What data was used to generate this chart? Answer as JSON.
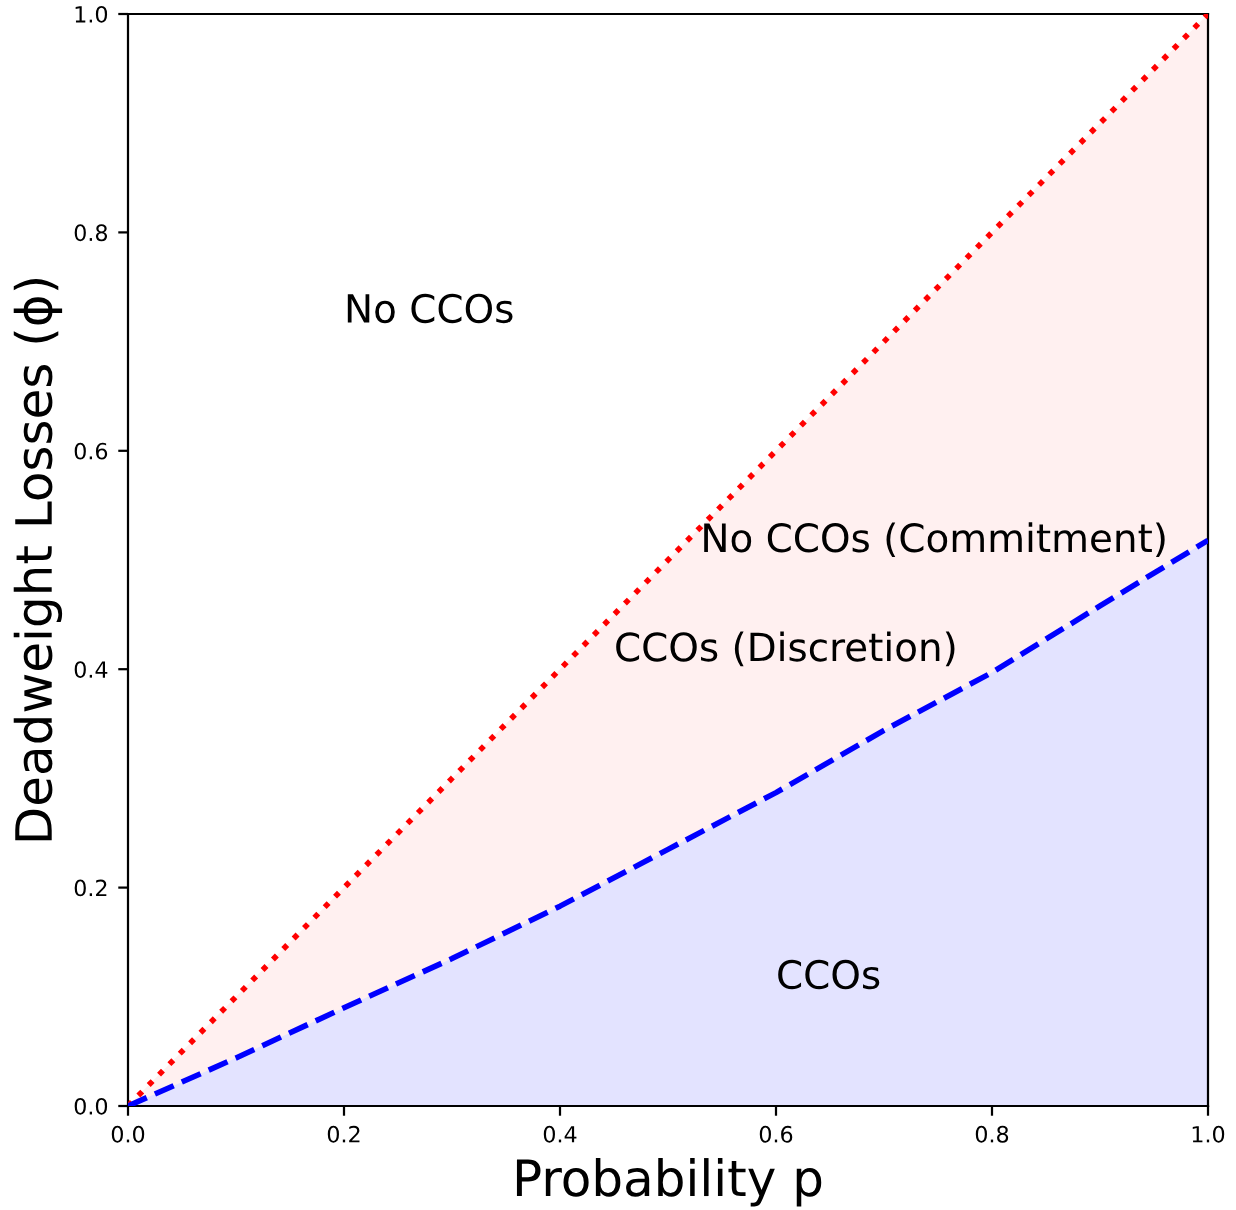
{
  "chart_data": {
    "type": "area",
    "xlabel": "Probability p",
    "ylabel": "Deadweight Losses (ϕ)",
    "x": [
      0,
      0.1,
      0.2,
      0.3,
      0.4,
      0.5,
      0.6,
      0.7,
      0.8,
      0.9,
      1.0
    ],
    "series": [
      {
        "color": "#ff0000",
        "line_style": "dotted",
        "values": [
          0,
          0.1,
          0.2,
          0.3,
          0.4,
          0.5,
          0.6,
          0.7,
          0.8,
          0.9,
          1.0
        ]
      },
      {
        "color": "#0000ff",
        "line_style": "dashed",
        "values": [
          0,
          0.044,
          0.09,
          0.135,
          0.183,
          0.235,
          0.287,
          0.344,
          0.397,
          0.458,
          0.518
        ]
      }
    ],
    "annotations": [
      "No CCOs",
      "No CCOs (Commitment)",
      "CCOs (Discretion)",
      "CCOs"
    ],
    "xlim": [
      0,
      1
    ],
    "ylim": [
      0,
      1
    ],
    "xticks": [
      {
        "value": 0,
        "label": "0.0"
      },
      0.2,
      0.4,
      0.6,
      0.8,
      {
        "value": 1,
        "label": "1.0"
      }
    ],
    "yticks": [
      {
        "value": 0,
        "label": "0.0"
      },
      0.2,
      0.4,
      0.6,
      0.8,
      {
        "value": 1,
        "label": "1.0"
      }
    ],
    "grid": false,
    "legend": false
  }
}
